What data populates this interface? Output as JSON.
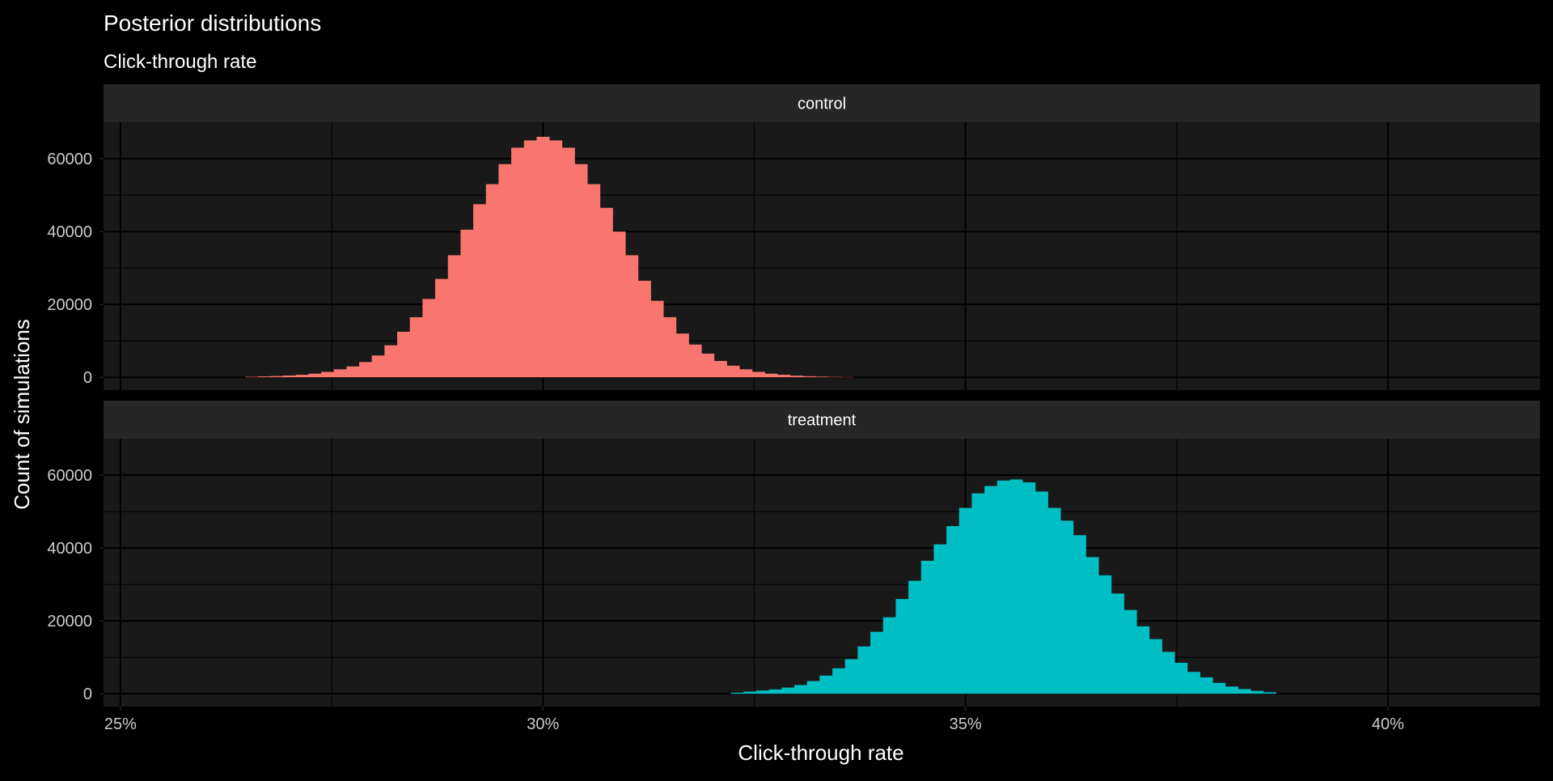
{
  "chart_data": {
    "type": "bar",
    "title": "Posterior distributions",
    "subtitle": "Click-through rate",
    "xlabel": "Click-through rate",
    "ylabel": "Count of simulations",
    "xlim": [
      24.8,
      41.8
    ],
    "ylim": [
      -3500,
      70000
    ],
    "x_ticks": [
      25,
      30,
      35,
      40
    ],
    "x_tick_labels": [
      "25%",
      "30%",
      "35%",
      "40%"
    ],
    "y_ticks": [
      0,
      20000,
      40000,
      60000
    ],
    "y_tick_labels": [
      "0",
      "20000",
      "40000",
      "60000"
    ],
    "grid": true,
    "bin_width": 0.15,
    "colors": {
      "background": "#000000",
      "panel": "#191919",
      "strip": "#262626",
      "grid": "#000000",
      "text": "#ffffff",
      "tick_text": "#cccccc",
      "control": "#f8766d",
      "treatment": "#00bfc4"
    },
    "panels": [
      {
        "name": "control",
        "x_start": 26.475,
        "counts": [
          150,
          250,
          350,
          500,
          700,
          1000,
          1500,
          2200,
          3000,
          4200,
          6000,
          8800,
          12500,
          16500,
          21500,
          27000,
          33500,
          40500,
          47500,
          53000,
          58500,
          63000,
          65000,
          66000,
          65000,
          63000,
          58500,
          53000,
          46500,
          40000,
          33500,
          26500,
          21000,
          16500,
          12000,
          9000,
          6500,
          4500,
          3200,
          2200,
          1500,
          1000,
          700,
          450,
          300,
          200,
          130,
          80
        ]
      },
      {
        "name": "treatment",
        "x_start": 32.225,
        "counts": [
          300,
          600,
          900,
          1200,
          1700,
          2400,
          3500,
          5000,
          7000,
          9500,
          13000,
          17000,
          21000,
          26000,
          31000,
          36500,
          41000,
          46000,
          51000,
          55000,
          57000,
          58500,
          58800,
          58000,
          55500,
          51000,
          47500,
          43500,
          37500,
          32500,
          27500,
          23000,
          18500,
          15000,
          11500,
          8500,
          6000,
          4500,
          3000,
          2000,
          1300,
          800,
          400
        ]
      }
    ]
  }
}
